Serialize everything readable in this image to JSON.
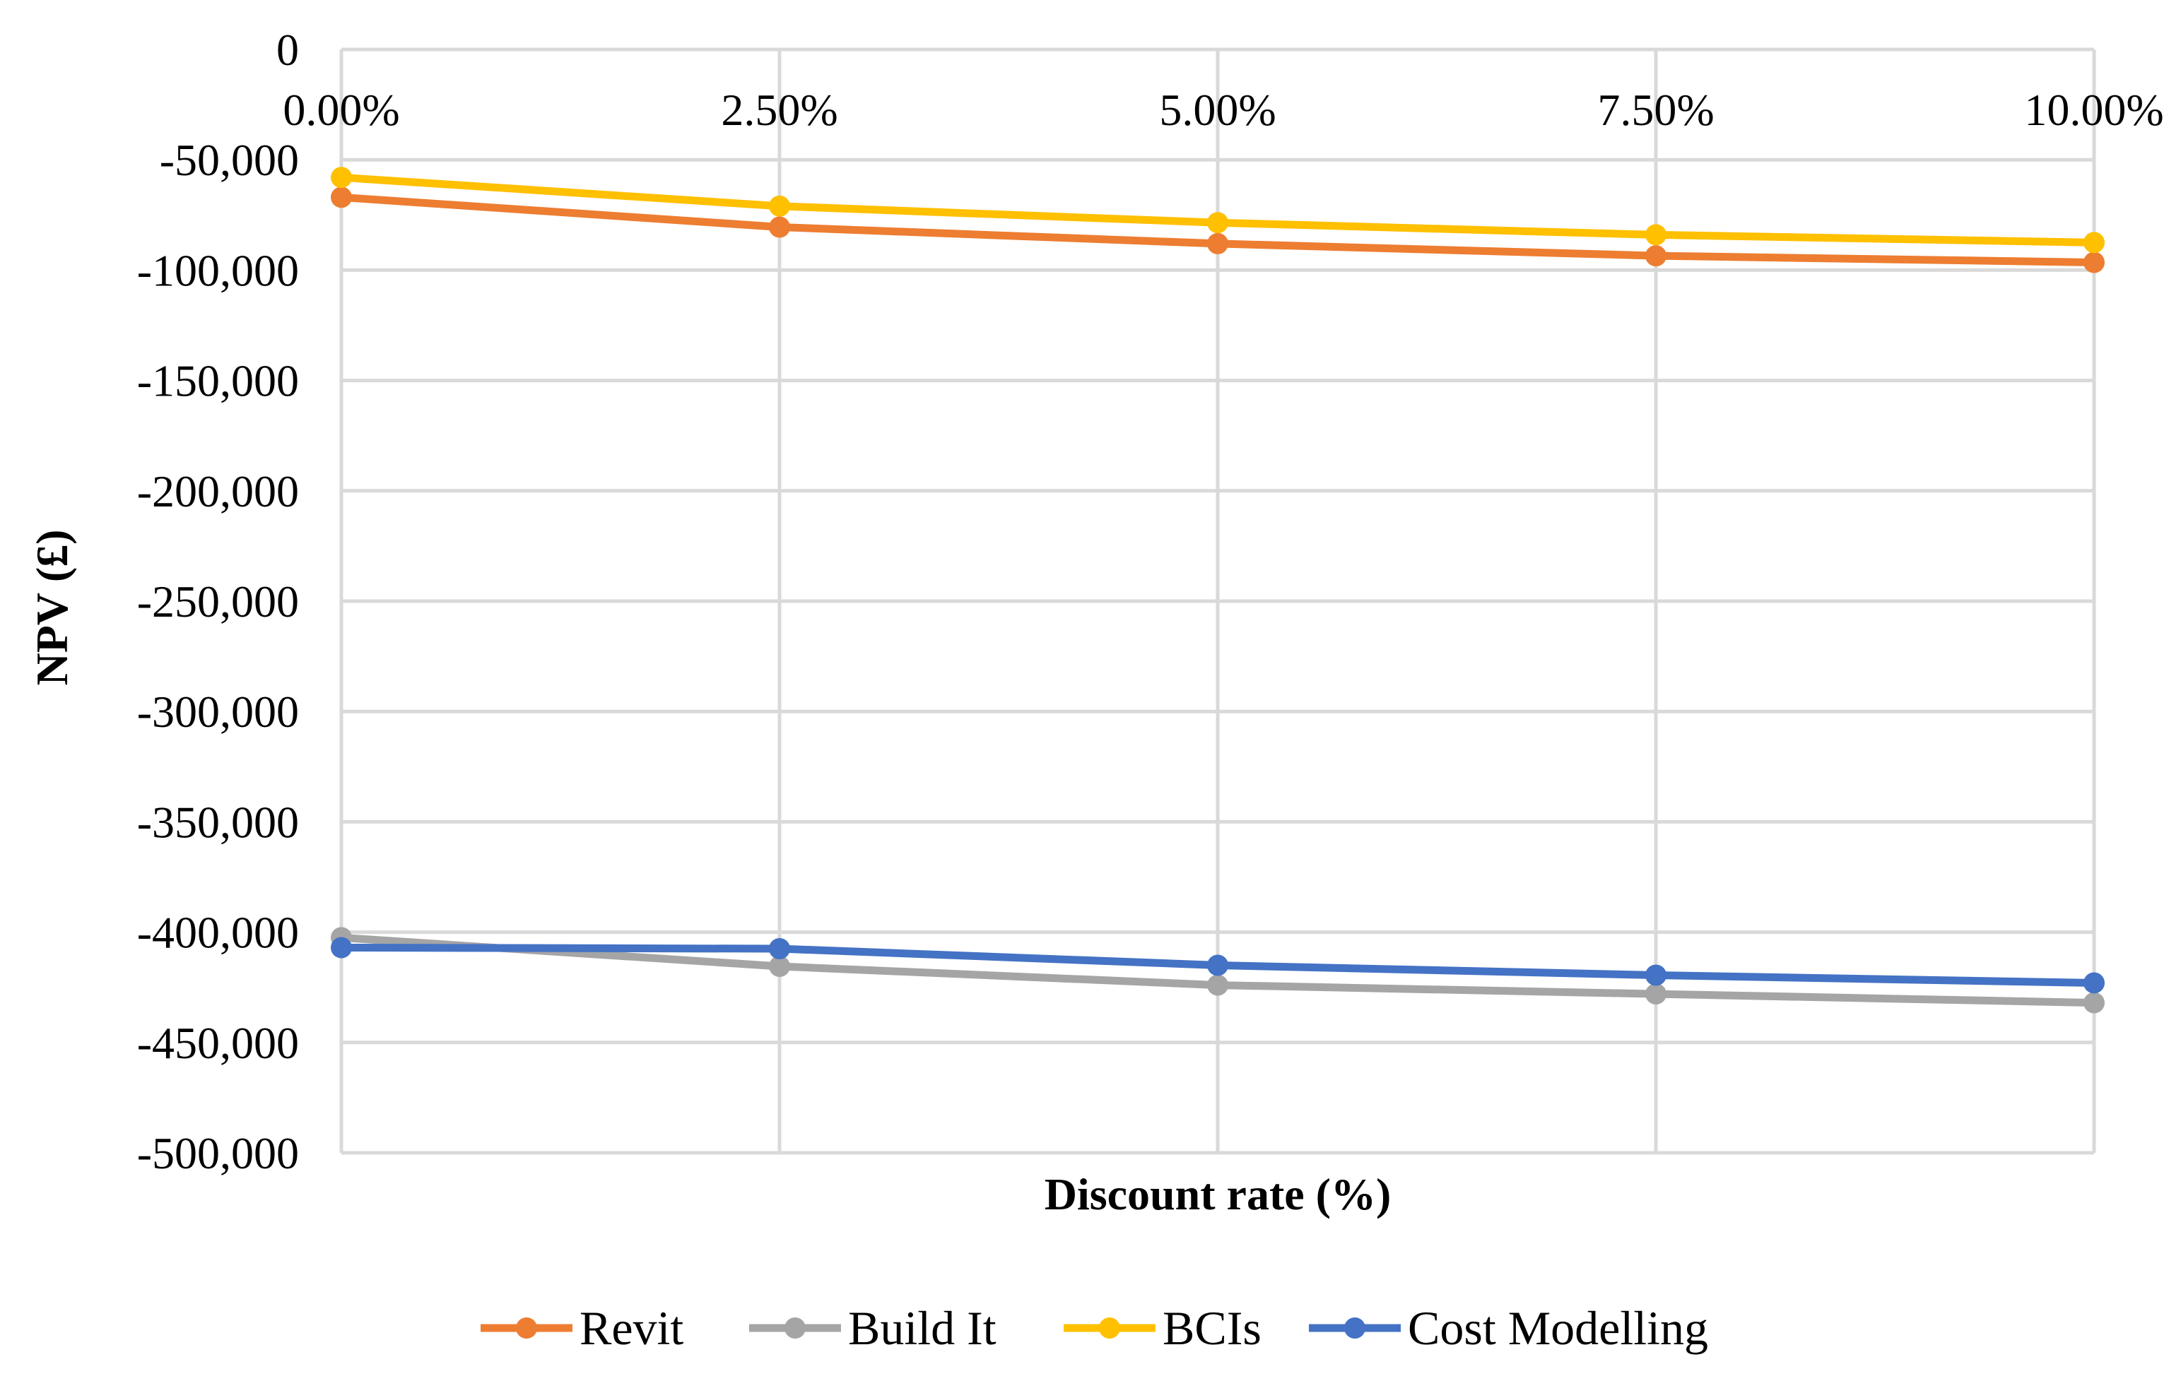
{
  "chart_data": {
    "type": "line",
    "title": "",
    "xlabel": "Discount rate (%)",
    "ylabel": "NPV (£)",
    "categories": [
      "0.00%",
      "2.50%",
      "5.00%",
      "7.50%",
      "10.00%"
    ],
    "y_ticks": [
      "0",
      "-50,000",
      "-100,000",
      "-150,000",
      "-200,000",
      "-250,000",
      "-300,000",
      "-350,000",
      "-400,000",
      "-450,000",
      "-500,000"
    ],
    "ylim": [
      -500000,
      0
    ],
    "x_tick_position": "top",
    "grid": true,
    "legend_position": "bottom",
    "series": [
      {
        "name": "Revit",
        "color": "#ed7d31",
        "values": [
          -67000,
          -80500,
          -88000,
          -93500,
          -96500
        ]
      },
      {
        "name": "Build It",
        "color": "#a5a5a5",
        "values": [
          -402500,
          -415500,
          -424000,
          -428000,
          -432000
        ]
      },
      {
        "name": "BCIs",
        "color": "#ffc000",
        "values": [
          -58000,
          -71000,
          -78500,
          -84000,
          -87500
        ]
      },
      {
        "name": "Cost Modelling",
        "color": "#4472c4",
        "values": [
          -407000,
          -407500,
          -415000,
          -419500,
          -423000
        ]
      }
    ]
  }
}
